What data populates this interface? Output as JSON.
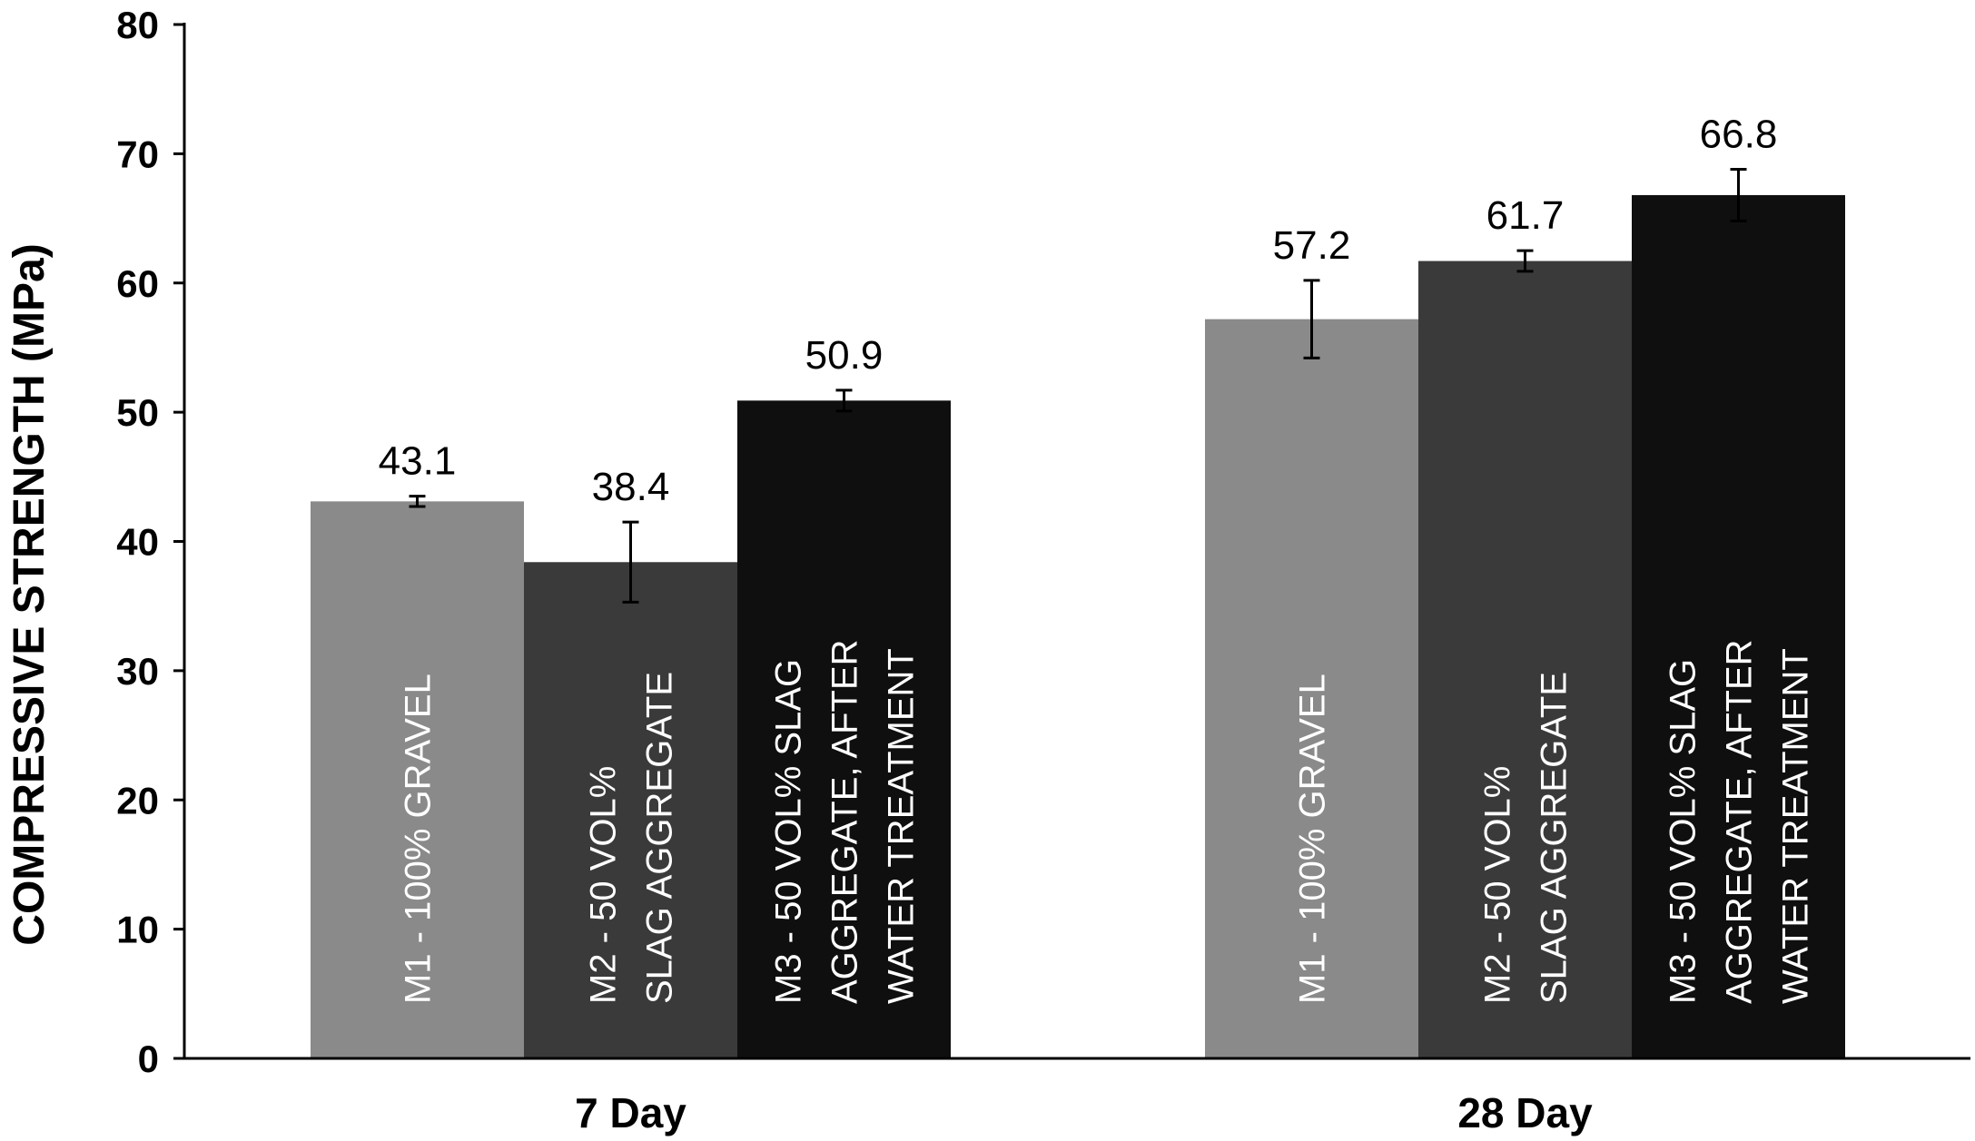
{
  "chart_data": {
    "type": "bar",
    "categories": [
      "7 Day",
      "28 Day"
    ],
    "series": [
      {
        "name": "M1 - 100% GRAVEL",
        "label_lines": [
          "M1 - 100% GRAVEL"
        ],
        "values": [
          43.1,
          57.2
        ],
        "errors": [
          0.4,
          3.0
        ],
        "color": "#8a8a8a"
      },
      {
        "name": "M2 - 50 VOL% SLAG AGGREGATE",
        "label_lines": [
          "M2 - 50 VOL%",
          "SLAG AGGREGATE"
        ],
        "values": [
          38.4,
          61.7
        ],
        "errors": [
          3.1,
          0.8
        ],
        "color": "#3a3a3a"
      },
      {
        "name": "M3 - 50 VOL% SLAG AGGREGATE, AFTER WATER TREATMENT",
        "label_lines": [
          "M3 - 50 VOL% SLAG",
          "AGGREGATE, AFTER",
          "WATER TREATMENT"
        ],
        "values": [
          50.9,
          66.8
        ],
        "errors": [
          0.8,
          2.0
        ],
        "color": "#0f0f0f"
      }
    ],
    "data_labels": [
      [
        "43.1",
        "57.2"
      ],
      [
        "38.4",
        "61.7"
      ],
      [
        "50.9",
        "66.8"
      ]
    ],
    "ylabel": "COMPRESSIVE STRENGTH (MPa)",
    "xlabel": "",
    "ylim": [
      0,
      80
    ],
    "yticks": [
      "0",
      "10",
      "20",
      "30",
      "40",
      "50",
      "60",
      "70",
      "80"
    ],
    "grid": false,
    "legend": "none (series labels written inside bars)"
  }
}
